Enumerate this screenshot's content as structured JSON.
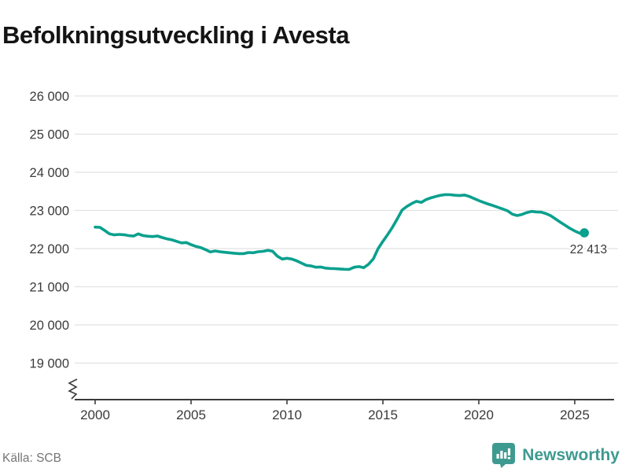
{
  "title": "Befolkningsutveckling i Avesta",
  "source": "Källa: SCB",
  "branding": {
    "name": "Newsworthy",
    "icon": "newsworthy-speech-bubble-bar-chart-icon",
    "color": "#3e9a90"
  },
  "colors": {
    "line": "#0aa08e",
    "marker": "#0aa08e",
    "grid": "#e2e2e2",
    "axis": "#3b3b3b",
    "tick_text": "#3a3a3a",
    "value_label": "#3a3a3a",
    "muted_text": "#757575",
    "title_text": "#141414"
  },
  "chart_data": {
    "type": "line",
    "title": "Befolkningsutveckling i Avesta",
    "xlabel": "",
    "ylabel": "",
    "frequency": "quarterly",
    "x_start": 2000,
    "x_step": 0.25,
    "x_ticks": [
      2000,
      2005,
      2010,
      2015,
      2020,
      2025
    ],
    "y_ticks": [
      19000,
      20000,
      21000,
      22000,
      23000,
      24000,
      25000,
      26000
    ],
    "y_tick_labels": [
      "19 000",
      "20 000",
      "21 000",
      "22 000",
      "23 000",
      "24 000",
      "25 000",
      "26 000"
    ],
    "ylim": [
      19000,
      26000
    ],
    "xlim": [
      2000,
      2025.6
    ],
    "grid": "horizontal",
    "axis_break_bottom_left": true,
    "legend": "none",
    "end_point_label": "22 413",
    "end_point_value": 22413,
    "values": [
      22563,
      22557,
      22474,
      22386,
      22358,
      22372,
      22362,
      22340,
      22328,
      22386,
      22340,
      22323,
      22316,
      22330,
      22289,
      22254,
      22228,
      22190,
      22148,
      22158,
      22103,
      22058,
      22027,
      21973,
      21911,
      21938,
      21918,
      21904,
      21890,
      21878,
      21869,
      21869,
      21897,
      21890,
      21918,
      21928,
      21955,
      21930,
      21800,
      21725,
      21746,
      21725,
      21680,
      21620,
      21560,
      21546,
      21512,
      21518,
      21488,
      21478,
      21474,
      21466,
      21458,
      21455,
      21512,
      21528,
      21500,
      21590,
      21730,
      22000,
      22190,
      22370,
      22560,
      22780,
      23010,
      23105,
      23180,
      23240,
      23210,
      23285,
      23330,
      23365,
      23395,
      23415,
      23412,
      23398,
      23390,
      23405,
      23368,
      23312,
      23258,
      23210,
      23165,
      23125,
      23080,
      23038,
      22990,
      22902,
      22865,
      22895,
      22945,
      22975,
      22960,
      22955,
      22918,
      22860,
      22775,
      22690,
      22610,
      22530,
      22462,
      22405,
      22413
    ]
  }
}
